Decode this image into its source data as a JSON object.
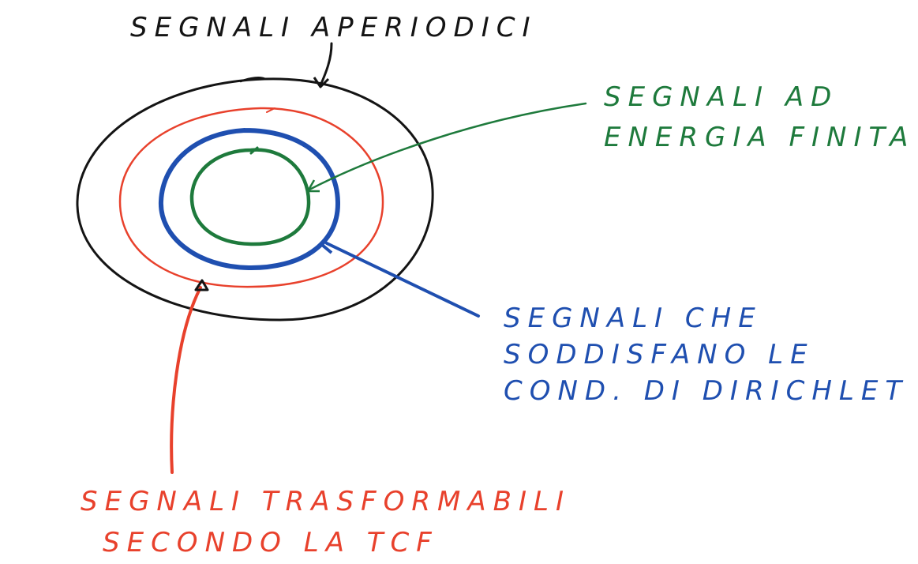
{
  "colors": {
    "black": "#141414",
    "red": "#e8412c",
    "blue": "#1f4fb0",
    "green": "#1e7a3c"
  },
  "labels": {
    "aperiodic": "SEGNALI APERIODICI",
    "finite_energy": [
      "SEGNALI AD",
      "ENERGIA FINITA"
    ],
    "dirichlet": [
      "SEGNALI CHE",
      "SODDISFANO LE",
      "COND. DI DIRICHLET"
    ],
    "transformable": [
      "SEGNALI TRASFORMABILI",
      "SECONDO LA TCF"
    ]
  }
}
